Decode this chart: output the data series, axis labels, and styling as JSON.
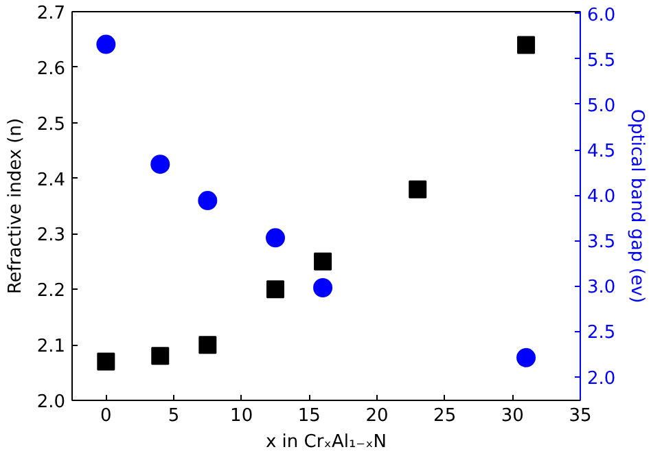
{
  "chart_data": {
    "type": "scatter",
    "xlabel": "x in CrₓAl₁₋ₓN",
    "ylabel": "Refractive index (n)",
    "y2label": "Optical band gap (ev)",
    "xlim": [
      -2.5,
      35
    ],
    "xticks": [
      0,
      5,
      10,
      15,
      20,
      25,
      30,
      35
    ],
    "ylim": [
      2.0,
      2.7
    ],
    "yticks": [
      {
        "value": 2,
        "label": "2.0"
      },
      2.1,
      2.2,
      2.3,
      2.4,
      2.5,
      2.6,
      2.7
    ],
    "y2lim": [
      1.74,
      6.02
    ],
    "y2ticks": [
      {
        "value": 2,
        "label": "2.0"
      },
      2.5,
      {
        "value": 3,
        "label": "3.0"
      },
      3.5,
      {
        "value": 4,
        "label": "4.0"
      },
      4.5,
      {
        "value": 5,
        "label": "5.0"
      },
      5.5,
      {
        "value": 6,
        "label": "6.0"
      }
    ],
    "grid": false,
    "series": [
      {
        "color": "#000000",
        "marker": "square",
        "x": [
          0,
          4,
          7.5,
          12.5,
          16,
          23,
          31
        ],
        "values": [
          2.07,
          2.08,
          2.1,
          2.2,
          2.25,
          2.38,
          2.64
        ]
      },
      {
        "color": "#0000ff",
        "marker": "circle",
        "axis": "y2",
        "x": [
          0,
          4,
          7.5,
          12.5,
          16,
          31
        ],
        "values": [
          5.66,
          4.34,
          3.94,
          3.53,
          2.98,
          2.21
        ]
      }
    ]
  }
}
